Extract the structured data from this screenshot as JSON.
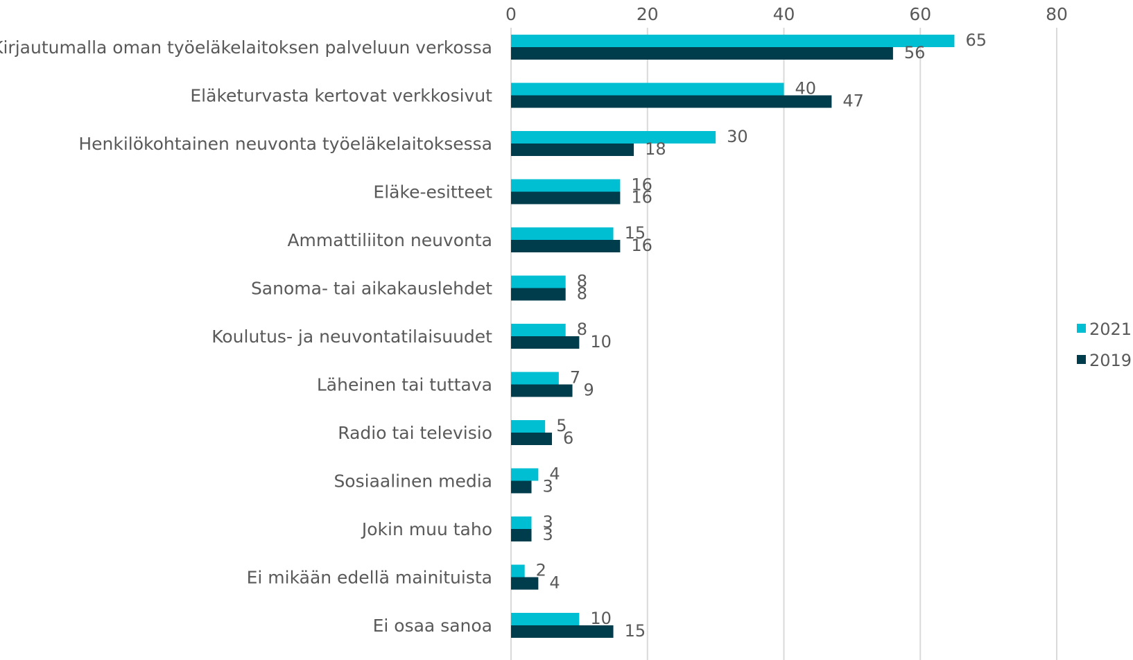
{
  "chart_data": {
    "type": "bar",
    "orientation": "horizontal",
    "categories": [
      "Kirjautumalla oman työeläkelaitoksen palveluun verkossa",
      "Eläketurvasta kertovat verkkosivut",
      "Henkilökohtainen neuvonta työeläkelaitoksessa",
      "Eläke-esitteet",
      "Ammattiliiton neuvonta",
      "Sanoma- tai aikakauslehdet ",
      "Koulutus- ja neuvontatilaisuudet",
      "Läheinen tai tuttava",
      "Radio tai televisio ",
      "Sosiaalinen media",
      "Jokin muu taho",
      "Ei mikään edellä mainituista",
      "Ei osaa sanoa"
    ],
    "series": [
      {
        "name": "2021",
        "color": "#00BFD3",
        "values": [
          65,
          40,
          30,
          16,
          15,
          8,
          8,
          7,
          5,
          4,
          3,
          2,
          10
        ]
      },
      {
        "name": "2019",
        "color": "#003D4C",
        "values": [
          56,
          47,
          18,
          16,
          16,
          8,
          10,
          9,
          6,
          3,
          3,
          4,
          15
        ]
      }
    ],
    "xlim": [
      0,
      80
    ],
    "xticks": [
      0,
      20,
      40,
      60,
      80
    ],
    "tick_labels": [
      "0",
      "20",
      "40",
      "60",
      "80"
    ],
    "x_axis_position": "top",
    "grid": "vertical",
    "gridline_color": "#D9D9D9",
    "data_labels": true,
    "legend": {
      "placement": "right",
      "entries": [
        "2021",
        "2019"
      ]
    },
    "title": "",
    "xlabel": "",
    "ylabel": ""
  }
}
